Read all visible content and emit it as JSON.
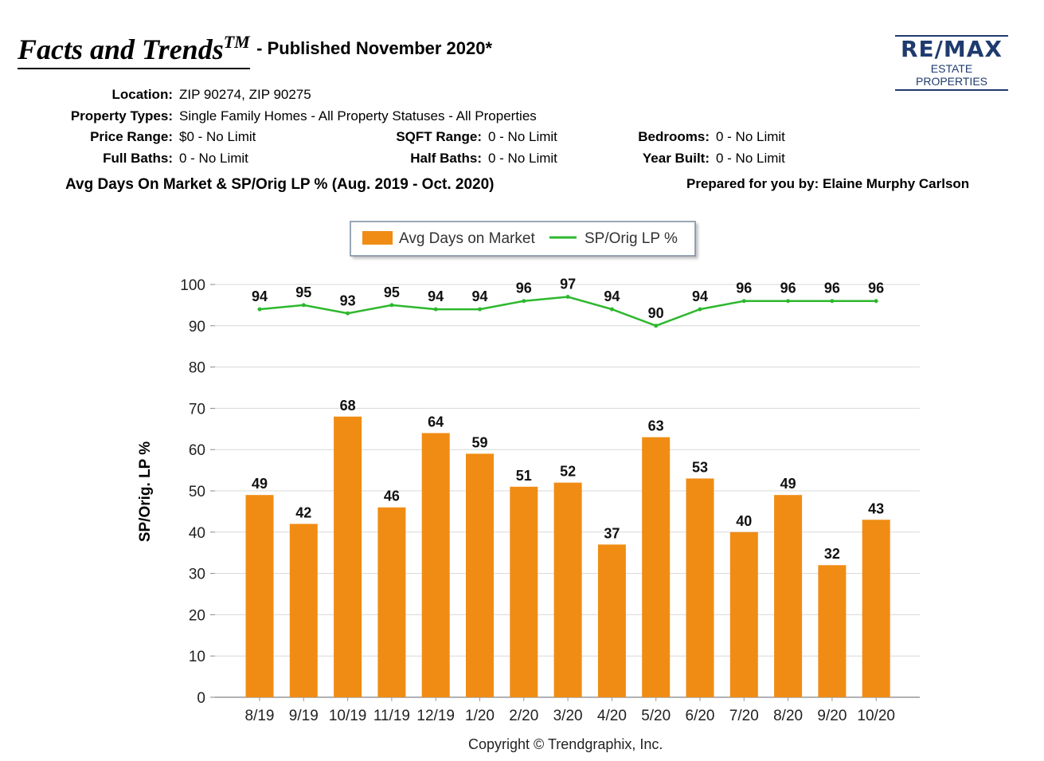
{
  "header": {
    "title": "Facts and Trends",
    "title_tm": "TM",
    "title_suffix": "- Published November 2020*",
    "logo_main": "RE/MAX",
    "logo_sub": "ESTATE PROPERTIES"
  },
  "filters": {
    "location_label": "Location:",
    "location_value": "ZIP 90274, ZIP 90275",
    "property_types_label": "Property Types:",
    "property_types_value": "Single Family Homes - All Property Statuses - All Properties",
    "price_range_label": "Price Range:",
    "price_range_value": "$0 - No Limit",
    "sqft_range_label": "SQFT Range:",
    "sqft_range_value": "0 - No Limit",
    "bedrooms_label": "Bedrooms:",
    "bedrooms_value": "0 - No Limit",
    "full_baths_label": "Full Baths:",
    "full_baths_value": "0 - No Limit",
    "half_baths_label": "Half Baths:",
    "half_baths_value": "0 - No Limit",
    "year_built_label": "Year Built:",
    "year_built_value": "0 - No Limit"
  },
  "subtitle": "Avg Days On Market & SP/Orig LP % (Aug. 2019 - Oct. 2020)",
  "prepared_by": "Prepared for you by: Elaine Murphy Carlson",
  "copyright": "Copyright © Trendgraphix, Inc.",
  "colors": {
    "bar": "#f08c14",
    "line": "#2db82d",
    "grid": "#d8d8d8",
    "logo": "#1f3b6e"
  },
  "chart_data": {
    "type": "bar",
    "title": "Avg Days On Market & SP/Orig LP % (Aug. 2019 - Oct. 2020)",
    "xlabel": "",
    "ylabel": "SP/Orig. LP %",
    "ylim": [
      0,
      100
    ],
    "yticks": [
      0,
      10,
      20,
      30,
      40,
      50,
      60,
      70,
      80,
      90,
      100
    ],
    "grid": true,
    "legend_position": "top-center",
    "categories": [
      "8/19",
      "9/19",
      "10/19",
      "11/19",
      "12/19",
      "1/20",
      "2/20",
      "3/20",
      "4/20",
      "5/20",
      "6/20",
      "7/20",
      "8/20",
      "9/20",
      "10/20"
    ],
    "series": [
      {
        "name": "Avg Days on Market",
        "type": "bar",
        "color": "#f08c14",
        "values": [
          49,
          42,
          68,
          46,
          64,
          59,
          51,
          52,
          37,
          63,
          53,
          40,
          49,
          32,
          43
        ]
      },
      {
        "name": "SP/Orig LP %",
        "type": "line",
        "color": "#2db82d",
        "values": [
          94,
          95,
          93,
          95,
          94,
          94,
          96,
          97,
          94,
          90,
          94,
          96,
          96,
          96,
          96
        ]
      }
    ]
  }
}
